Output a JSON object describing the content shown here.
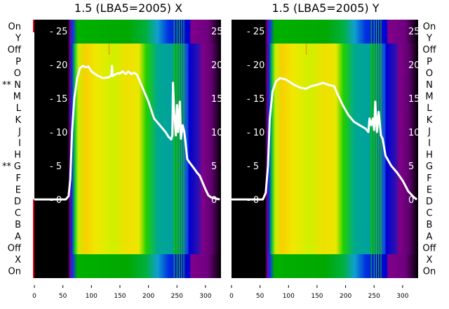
{
  "chart_data": [
    {
      "type": "line",
      "title": "1.5 (LBA5=2005) X",
      "xlim": [
        0,
        327
      ],
      "ylim": [
        -11.5,
        26.7
      ],
      "xticks": [
        "0",
        "50",
        "100",
        "150",
        "200",
        "250",
        "300"
      ],
      "yticks": [
        "0",
        "5",
        "10",
        "15",
        "20",
        "25"
      ],
      "row_labels": [
        "On",
        "Y",
        "Off",
        "P",
        "O",
        "N",
        "M",
        "L",
        "K",
        "J",
        "I",
        "H",
        "G",
        "F",
        "E",
        "D",
        "C",
        "B",
        "A",
        "Off",
        "X",
        "On"
      ],
      "row_markers": {
        "N": "**",
        "G": "**"
      },
      "series": [
        {
          "name": "X",
          "x": [
            0,
            55,
            60,
            63,
            66,
            70,
            75,
            80,
            85,
            90,
            95,
            100,
            110,
            120,
            130,
            135,
            136,
            137,
            145,
            150,
            155,
            160,
            165,
            170,
            175,
            180,
            185,
            190,
            200,
            210,
            220,
            225,
            230,
            235,
            240,
            242,
            243,
            245,
            248,
            250,
            252,
            255,
            257,
            260,
            263,
            265,
            268,
            272,
            280,
            285,
            290,
            295,
            300,
            305,
            310,
            325
          ],
          "y": [
            0,
            0,
            0.5,
            3,
            10,
            15,
            18,
            19.5,
            19.8,
            19.6,
            19.7,
            19,
            18.4,
            18,
            18.1,
            18.4,
            19.8,
            18.3,
            18.7,
            18.7,
            19,
            18.6,
            19,
            18.6,
            18.8,
            18.5,
            17.5,
            16.5,
            14.5,
            12,
            11,
            10.5,
            10,
            9.3,
            8.9,
            9.5,
            17.3,
            13,
            9.5,
            14,
            10,
            14.5,
            9,
            11,
            10,
            8.5,
            6,
            5.5,
            4.6,
            4,
            3.5,
            2.5,
            1.5,
            0.6,
            0.3,
            0
          ]
        }
      ]
    },
    {
      "type": "line",
      "title": "1.5 (LBA5=2005) Y",
      "xlim": [
        0,
        327
      ],
      "ylim": [
        -11.5,
        26.7
      ],
      "xticks": [
        "0",
        "50",
        "100",
        "150",
        "200",
        "250",
        "300"
      ],
      "yticks": [
        "0",
        "5",
        "10",
        "15",
        "20",
        "25"
      ],
      "row_labels": [
        "On",
        "Y",
        "Off",
        "P",
        "O",
        "N",
        "M",
        "L",
        "K",
        "J",
        "I",
        "H",
        "G",
        "F",
        "E",
        "D",
        "C",
        "B",
        "A",
        "Off",
        "X",
        "On"
      ],
      "series": [
        {
          "name": "Y",
          "x": [
            0,
            55,
            60,
            64,
            67,
            72,
            78,
            85,
            95,
            110,
            120,
            130,
            140,
            150,
            160,
            170,
            180,
            185,
            195,
            205,
            215,
            225,
            235,
            240,
            242,
            245,
            248,
            250,
            252,
            255,
            258,
            262,
            265,
            270,
            280,
            290,
            300,
            310,
            320,
            325
          ],
          "y": [
            0,
            0,
            1,
            5,
            12,
            16,
            17.5,
            18,
            17.8,
            17,
            16.6,
            16.4,
            16.8,
            17,
            17.3,
            17,
            16.8,
            15.8,
            14,
            12.5,
            11.5,
            11,
            10.5,
            10,
            12,
            11,
            12,
            10.3,
            14.5,
            10,
            13,
            9.5,
            9,
            6.5,
            5,
            4,
            2.8,
            1.2,
            0.3,
            0
          ]
        }
      ]
    }
  ]
}
